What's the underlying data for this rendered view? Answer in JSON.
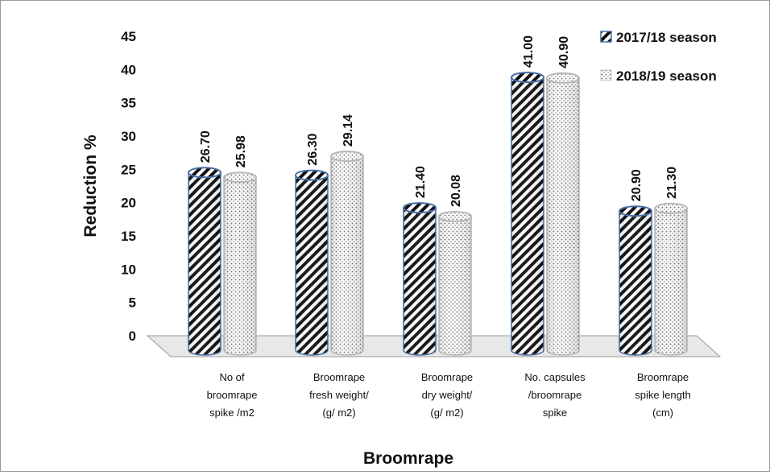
{
  "chart_data": {
    "type": "bar",
    "title": "",
    "xlabel": "Broomrape",
    "ylabel": "Reduction %",
    "ylim": [
      0,
      45
    ],
    "yticks": [
      "0",
      "5",
      "10",
      "15",
      "20",
      "25",
      "30",
      "35",
      "40",
      "45"
    ],
    "categories": [
      [
        "No of",
        "broomrape",
        "spike /m2"
      ],
      [
        "Broomrape",
        "fresh weight/",
        "(g/ m2)"
      ],
      [
        "Broomrape",
        "dry weight/",
        "(g/ m2)"
      ],
      [
        "No. capsules",
        "/broomrape",
        "spike"
      ],
      [
        "Broomrape",
        "spike length",
        "(cm)"
      ]
    ],
    "series": [
      {
        "name": "2017/18 season",
        "values": [
          26.7,
          26.3,
          21.4,
          41.0,
          20.9
        ],
        "labels": [
          "26.70",
          "26.30",
          "21.40",
          "41.00",
          "20.90"
        ],
        "pattern": "diagonal-hatch"
      },
      {
        "name": "2018/19 season",
        "values": [
          25.98,
          29.14,
          20.08,
          40.9,
          21.3
        ],
        "labels": [
          "25.98",
          "29.14",
          "20.08",
          "40.90",
          "21.30"
        ],
        "pattern": "dots"
      }
    ],
    "grid": false,
    "legend": "top-right",
    "style": "3d-cylinder",
    "colors": {
      "cylinder_edge": "#4a6fa8",
      "hatch": "#111111",
      "dots": "#8c8c8c",
      "floor": "#e6e6e6"
    }
  }
}
